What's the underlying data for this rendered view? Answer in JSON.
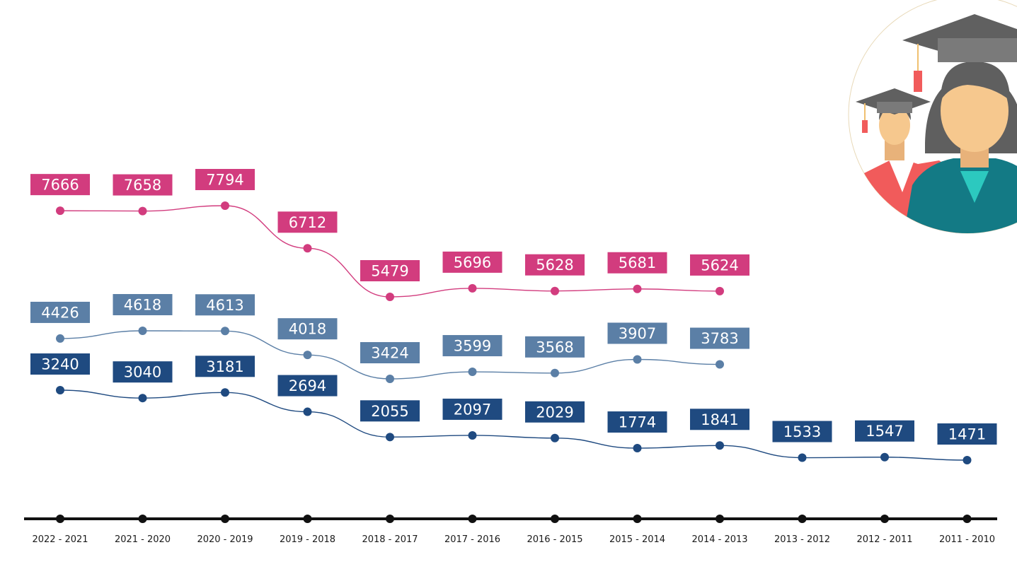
{
  "chart_data": {
    "type": "line",
    "title": "",
    "xlabel": "",
    "ylabel": "",
    "grid": false,
    "legend": "none",
    "categories": [
      "2022 - 2021",
      "2021 - 2020",
      "2020 - 2019",
      "2019 - 2018",
      "2018 - 2017",
      "2017 - 2016",
      "2016 - 2015",
      "2015 - 2014",
      "2014 - 2013",
      "2013 - 2012",
      "2012 - 2011",
      "2011 - 2010"
    ],
    "series": [
      {
        "name": "series-1",
        "color": "#d23c7e",
        "values": [
          7666,
          7658,
          7794,
          6712,
          5479,
          5696,
          5628,
          5681,
          5624,
          null,
          null,
          null
        ]
      },
      {
        "name": "series-2",
        "color": "#5b7fa6",
        "values": [
          4426,
          4618,
          4613,
          4018,
          3424,
          3599,
          3568,
          3907,
          3783,
          null,
          null,
          null
        ]
      },
      {
        "name": "series-3",
        "color": "#1f4a80",
        "values": [
          3240,
          3040,
          3181,
          2694,
          2055,
          2097,
          2029,
          1774,
          1841,
          1533,
          1547,
          1471
        ]
      }
    ]
  },
  "colors": {
    "axis": "#111111",
    "tick_text": "#1a1a1a",
    "label_text": "#ffffff"
  },
  "illustration": {
    "icon": "graduates-icon"
  }
}
